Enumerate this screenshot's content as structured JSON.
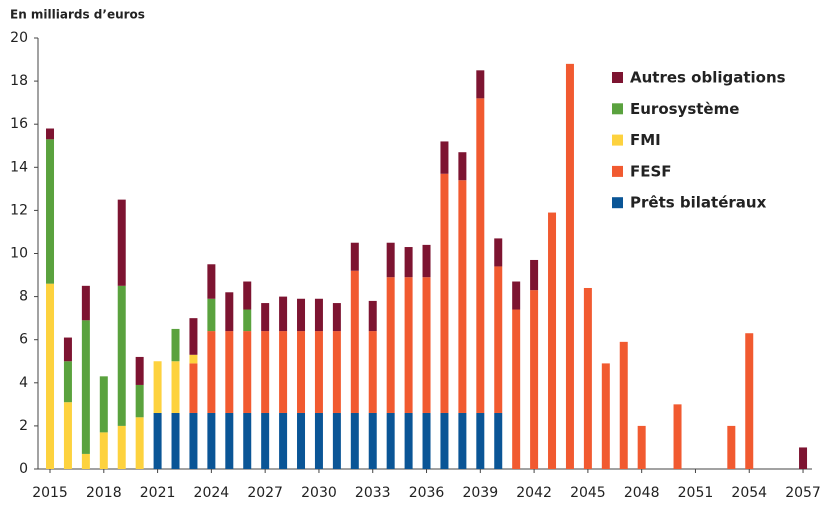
{
  "chart_data": {
    "type": "stacked_bar",
    "y_label": "En milliards d’euros",
    "x": [
      2015,
      2016,
      2017,
      2018,
      2019,
      2020,
      2021,
      2022,
      2023,
      2024,
      2025,
      2026,
      2027,
      2028,
      2029,
      2030,
      2031,
      2032,
      2033,
      2034,
      2035,
      2036,
      2037,
      2038,
      2039,
      2040,
      2041,
      2042,
      2043,
      2044,
      2045,
      2046,
      2047,
      2048,
      2049,
      2050,
      2051,
      2052,
      2053,
      2054,
      2055,
      2056,
      2057
    ],
    "xlim": [
      2014.33,
      2057.5
    ],
    "xticks": [
      2015,
      2018,
      2021,
      2024,
      2027,
      2030,
      2033,
      2036,
      2039,
      2042,
      2045,
      2048,
      2051,
      2054,
      2057
    ],
    "ylim": [
      0,
      20
    ],
    "yticks": [
      0,
      2,
      4,
      6,
      8,
      10,
      12,
      14,
      16,
      18,
      20
    ],
    "series": [
      {
        "name": "Prêts bilatéraux",
        "color": "#0a5596",
        "values": [
          0,
          0,
          0,
          0,
          0,
          0,
          2.6,
          2.6,
          2.6,
          2.6,
          2.6,
          2.6,
          2.6,
          2.6,
          2.6,
          2.6,
          2.6,
          2.6,
          2.6,
          2.6,
          2.6,
          2.6,
          2.6,
          2.6,
          2.6,
          2.6,
          0,
          0,
          0,
          0,
          0,
          0,
          0,
          0,
          0,
          0,
          0,
          0,
          0,
          0,
          0,
          0,
          0
        ]
      },
      {
        "name": "FESF",
        "color": "#f15a30",
        "values": [
          0,
          0,
          0,
          0,
          0,
          0,
          0,
          0,
          2.3,
          3.8,
          3.8,
          3.8,
          3.8,
          3.8,
          3.8,
          3.8,
          3.8,
          6.6,
          3.8,
          6.3,
          6.3,
          6.3,
          11.1,
          10.8,
          14.6,
          6.8,
          7.4,
          8.3,
          11.9,
          18.8,
          8.4,
          4.9,
          5.9,
          2.0,
          0,
          3.0,
          0,
          0,
          2.0,
          6.3,
          0,
          0,
          0
        ]
      },
      {
        "name": "FMI",
        "color": "#fdd23e",
        "values": [
          8.6,
          3.1,
          0.7,
          1.7,
          2.0,
          2.4,
          2.4,
          2.4,
          0.4,
          0,
          0,
          0,
          0,
          0,
          0,
          0,
          0,
          0,
          0,
          0,
          0,
          0,
          0,
          0,
          0,
          0,
          0,
          0,
          0,
          0,
          0,
          0,
          0,
          0,
          0,
          0,
          0,
          0,
          0,
          0,
          0,
          0,
          0
        ]
      },
      {
        "name": "Eurosystème",
        "color": "#5aa23e",
        "values": [
          6.7,
          1.9,
          6.2,
          2.6,
          6.5,
          1.5,
          0,
          1.5,
          0,
          1.5,
          0,
          1.0,
          0,
          0,
          0,
          0,
          0,
          0,
          0,
          0,
          0,
          0,
          0,
          0,
          0,
          0,
          0,
          0,
          0,
          0,
          0,
          0,
          0,
          0,
          0,
          0,
          0,
          0,
          0,
          0,
          0,
          0,
          0
        ]
      },
      {
        "name": "Autres obligations",
        "color": "#7d1431",
        "values": [
          0.5,
          1.1,
          1.6,
          0,
          4.0,
          1.3,
          0,
          0,
          1.7,
          1.6,
          1.8,
          1.3,
          1.3,
          1.6,
          1.5,
          1.5,
          1.3,
          1.3,
          1.4,
          1.6,
          1.4,
          1.5,
          1.5,
          1.3,
          1.3,
          1.3,
          1.3,
          1.4,
          0,
          0,
          0,
          0,
          0,
          0,
          0,
          0,
          0,
          0,
          0,
          0,
          0,
          0,
          1.0
        ]
      }
    ],
    "legend": "upper right",
    "grid": false
  }
}
